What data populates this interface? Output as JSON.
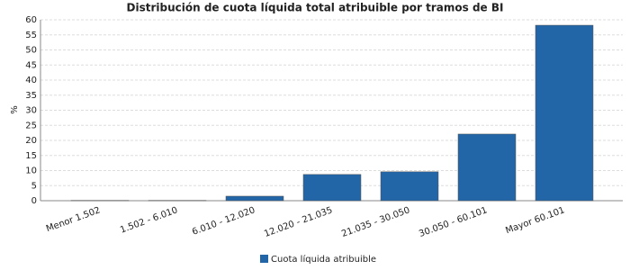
{
  "chart_data": {
    "type": "bar",
    "title": "Distribución de cuota líquida total atribuible por tramos de BI",
    "y_label": "%",
    "categories": [
      "Menor 1.502",
      "1.502 - 6.010",
      "6.010 - 12.020",
      "12.020 - 21.035",
      "21.035 - 30.050",
      "30.050 - 60.101",
      "Mayor 60.101"
    ],
    "series": [
      {
        "name": "Cuota líquida atribuible",
        "color": "#2366a8",
        "values": [
          0.1,
          0.1,
          1.5,
          8.7,
          9.6,
          22.1,
          58.2
        ]
      }
    ],
    "ylim": [
      0,
      60
    ],
    "yticks": [
      0,
      5,
      10,
      15,
      20,
      25,
      30,
      35,
      40,
      45,
      50,
      55,
      60
    ],
    "grid": true,
    "legend": "bottom"
  }
}
